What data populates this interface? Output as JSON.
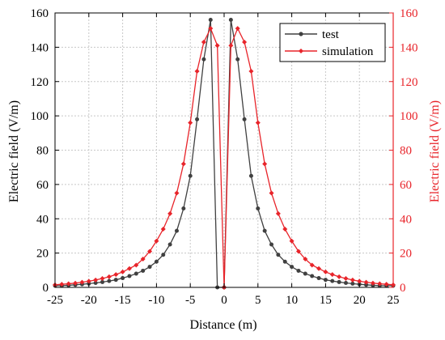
{
  "chart_data": {
    "type": "line",
    "xlabel": "Distance (m)",
    "ylabel_left": "Electric field (V/m)",
    "ylabel_right": "Electric field (V/m)",
    "xlim": [
      -25,
      25
    ],
    "ylim": [
      0,
      160
    ],
    "x_ticks": [
      "-25",
      "-20",
      "-15",
      "-10",
      "-5",
      "0",
      "5",
      "10",
      "15",
      "20",
      "25"
    ],
    "y_ticks": [
      "0",
      "20",
      "40",
      "60",
      "80",
      "100",
      "120",
      "140",
      "160"
    ],
    "grid": true,
    "legend_position": "top-right",
    "series": [
      {
        "name": "test",
        "color": "#404040",
        "marker": "circle",
        "axis": "left",
        "x": [
          -25,
          -24,
          -23,
          -22,
          -21,
          -20,
          -19,
          -18,
          -17,
          -16,
          -15,
          -14,
          -13,
          -12,
          -11,
          -10,
          -9,
          -8,
          -7,
          -6,
          -5,
          -4,
          -3,
          -2,
          -1,
          0,
          1,
          2,
          3,
          4,
          5,
          6,
          7,
          8,
          9,
          10,
          11,
          12,
          13,
          14,
          15,
          16,
          17,
          18,
          19,
          20,
          21,
          22,
          23,
          24,
          25
        ],
        "y": [
          1,
          1,
          1.2,
          1.5,
          1.8,
          2.2,
          2.6,
          3.1,
          3.7,
          4.4,
          5.4,
          6.6,
          8,
          9.7,
          12,
          15,
          19,
          25,
          33,
          46,
          65,
          98,
          133,
          156,
          0,
          0,
          156,
          133,
          98,
          65,
          46,
          33,
          25,
          19,
          15,
          12,
          9.7,
          8,
          6.6,
          5.4,
          4.4,
          3.7,
          3.1,
          2.6,
          2.2,
          1.8,
          1.5,
          1.2,
          1,
          1,
          1
        ]
      },
      {
        "name": "simulation",
        "color": "#e8242a",
        "marker": "diamond",
        "axis": "right",
        "x": [
          -25,
          -24,
          -23,
          -22,
          -21,
          -20,
          -19,
          -18,
          -17,
          -16,
          -15,
          -14,
          -13,
          -12,
          -11,
          -10,
          -9,
          -8,
          -7,
          -6,
          -5,
          -4,
          -3,
          -2,
          -1,
          0,
          1,
          2,
          3,
          4,
          5,
          6,
          7,
          8,
          9,
          10,
          11,
          12,
          13,
          14,
          15,
          16,
          17,
          18,
          19,
          20,
          21,
          22,
          23,
          24,
          25
        ],
        "y": [
          1.5,
          1.8,
          2.1,
          2.5,
          3,
          3.6,
          4.3,
          5.2,
          6.2,
          7.5,
          9,
          11,
          13,
          16.5,
          21,
          27,
          34,
          43,
          55,
          72,
          96,
          126,
          143,
          151,
          141,
          0,
          141,
          151,
          143,
          126,
          96,
          72,
          55,
          43,
          34,
          27,
          21,
          16.5,
          13,
          11,
          9,
          7.5,
          6.2,
          5.2,
          4.3,
          3.6,
          3,
          2.5,
          2.1,
          1.8,
          1.5
        ]
      }
    ]
  },
  "colors": {
    "left_axis": "#000000",
    "right_axis": "#e8242a",
    "grid": "#c8c8c8"
  }
}
